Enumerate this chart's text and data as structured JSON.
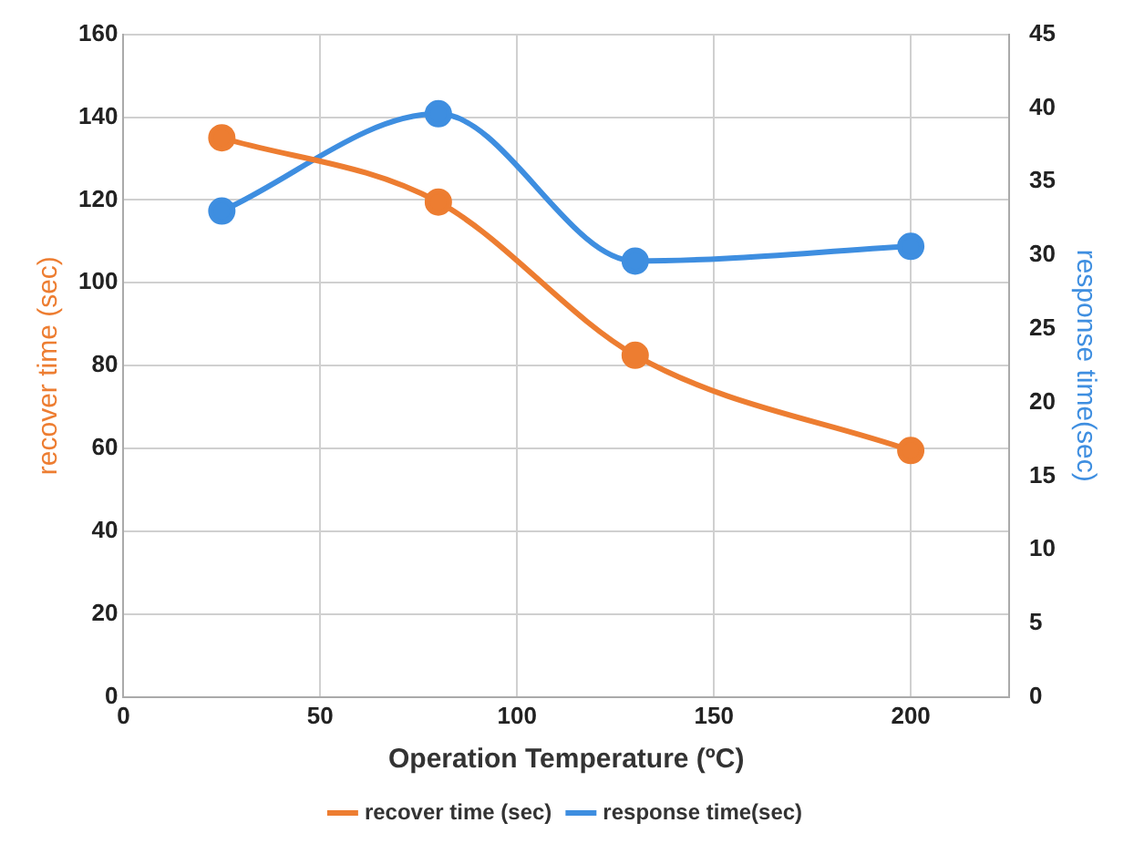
{
  "chart_data": {
    "type": "line",
    "xlabel": "Operation Temperature (ºC)",
    "ylabel": "recover time (sec)",
    "y2label": "response time(sec)",
    "xlim": [
      0,
      225
    ],
    "xticks": [
      0,
      50,
      100,
      150,
      200
    ],
    "ylim": [
      0,
      160
    ],
    "yticks": [
      0,
      20,
      40,
      60,
      80,
      100,
      120,
      140,
      160
    ],
    "y2lim": [
      0,
      45
    ],
    "y2ticks": [
      0,
      5,
      10,
      15,
      20,
      25,
      30,
      35,
      40,
      45
    ],
    "x": [
      25,
      80,
      130,
      200
    ],
    "grid": true,
    "legend": "bottom",
    "marker": "circle",
    "line_style": "solid",
    "series": [
      {
        "name": "recover time (sec)",
        "color": "#ed7d31",
        "values": [
          135,
          119.5,
          82.5,
          59.5
        ]
      },
      {
        "name": "response time(sec)",
        "color": "#3e8ee0",
        "values": [
          33,
          39.6,
          29.6,
          30.6
        ],
        "axis": "y2"
      }
    ]
  }
}
